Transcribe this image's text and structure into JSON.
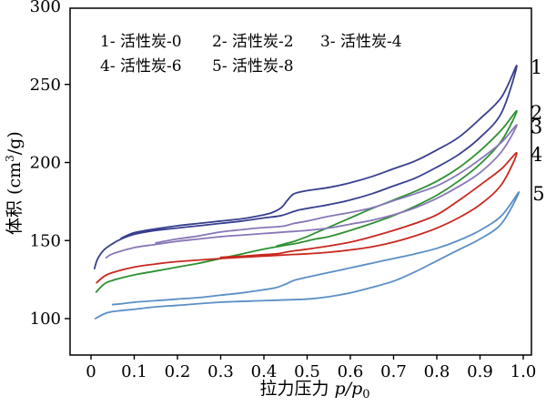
{
  "chart_data": {
    "type": "line",
    "title": "",
    "xlabel": "拉力压力 p/p₀",
    "ylabel": "体积 (cm³/g)",
    "xlabel_parts": {
      "cn": "拉力压力",
      "math": "p/p",
      "sub": "0"
    },
    "ylabel_parts": {
      "prefix": "体积 (cm",
      "sup": "3",
      "suffix": "/g)"
    },
    "xlim": [
      -0.05,
      1.02
    ],
    "ylim": [
      77,
      300
    ],
    "grid": false,
    "xticks": [
      {
        "v": 0.0,
        "label": "0"
      },
      {
        "v": 0.1,
        "label": "0.1"
      },
      {
        "v": 0.2,
        "label": "0.2"
      },
      {
        "v": 0.3,
        "label": "0.3"
      },
      {
        "v": 0.4,
        "label": "0.4"
      },
      {
        "v": 0.5,
        "label": "0.5"
      },
      {
        "v": 0.6,
        "label": "0.6"
      },
      {
        "v": 0.7,
        "label": "0.7"
      },
      {
        "v": 0.8,
        "label": "0.8"
      },
      {
        "v": 0.9,
        "label": "0.9"
      },
      {
        "v": 1.0,
        "label": "1.0"
      }
    ],
    "yticks": [
      {
        "v": 300,
        "label": "300"
      },
      {
        "v": 250,
        "label": "250"
      },
      {
        "v": 200,
        "label": "200"
      },
      {
        "v": 150,
        "label": "150"
      },
      {
        "v": 100,
        "label": "100"
      }
    ],
    "legend": {
      "position": "inside-top-left",
      "rows": [
        [
          "1- 活性炭-0",
          "2- 活性炭-2",
          "3- 活性炭-4"
        ],
        [
          "4- 活性炭-6",
          "5- 活性炭-8"
        ]
      ]
    },
    "series": [
      {
        "id": "1",
        "name": "活性炭-0",
        "end_label": "1",
        "color": "#383f8e",
        "adsorption": [
          [
            0.008,
            132
          ],
          [
            0.015,
            138
          ],
          [
            0.03,
            144
          ],
          [
            0.05,
            148
          ],
          [
            0.07,
            151
          ],
          [
            0.1,
            154
          ],
          [
            0.15,
            156.5
          ],
          [
            0.2,
            158
          ],
          [
            0.25,
            159.5
          ],
          [
            0.3,
            161
          ],
          [
            0.35,
            162.5
          ],
          [
            0.4,
            164.5
          ],
          [
            0.44,
            166
          ],
          [
            0.48,
            169.5
          ],
          [
            0.52,
            171.5
          ],
          [
            0.55,
            173
          ],
          [
            0.6,
            176
          ],
          [
            0.65,
            180
          ],
          [
            0.7,
            185
          ],
          [
            0.75,
            190
          ],
          [
            0.8,
            197
          ],
          [
            0.85,
            205
          ],
          [
            0.9,
            216
          ],
          [
            0.95,
            232
          ],
          [
            0.985,
            262
          ]
        ],
        "desorption": [
          [
            0.985,
            262
          ],
          [
            0.95,
            242
          ],
          [
            0.9,
            228
          ],
          [
            0.85,
            216
          ],
          [
            0.8,
            208
          ],
          [
            0.75,
            201
          ],
          [
            0.7,
            196
          ],
          [
            0.65,
            191
          ],
          [
            0.6,
            187
          ],
          [
            0.55,
            184
          ],
          [
            0.5,
            182
          ],
          [
            0.47,
            180
          ],
          [
            0.455,
            176
          ],
          [
            0.44,
            171
          ],
          [
            0.42,
            168
          ],
          [
            0.4,
            166.5
          ],
          [
            0.35,
            164
          ],
          [
            0.3,
            162.5
          ],
          [
            0.25,
            161
          ],
          [
            0.2,
            159.5
          ],
          [
            0.15,
            157.5
          ],
          [
            0.1,
            155
          ],
          [
            0.07,
            151.5
          ]
        ]
      },
      {
        "id": "2",
        "name": "活性炭-2",
        "end_label": "2",
        "color": "#2e9132",
        "adsorption": [
          [
            0.012,
            117
          ],
          [
            0.03,
            122
          ],
          [
            0.05,
            124.5
          ],
          [
            0.1,
            128
          ],
          [
            0.15,
            130.5
          ],
          [
            0.2,
            133
          ],
          [
            0.25,
            135.5
          ],
          [
            0.3,
            138.5
          ],
          [
            0.35,
            141.5
          ],
          [
            0.4,
            144.5
          ],
          [
            0.44,
            146.5
          ],
          [
            0.48,
            148.5
          ],
          [
            0.52,
            151
          ],
          [
            0.55,
            152.5
          ],
          [
            0.6,
            156.5
          ],
          [
            0.65,
            161
          ],
          [
            0.7,
            166
          ],
          [
            0.75,
            172
          ],
          [
            0.8,
            179
          ],
          [
            0.85,
            188
          ],
          [
            0.9,
            199
          ],
          [
            0.95,
            214
          ],
          [
            0.985,
            233
          ]
        ],
        "desorption": [
          [
            0.985,
            233
          ],
          [
            0.95,
            221
          ],
          [
            0.9,
            207.5
          ],
          [
            0.85,
            196.5
          ],
          [
            0.8,
            188
          ],
          [
            0.75,
            181.5
          ],
          [
            0.7,
            176
          ],
          [
            0.65,
            170.5
          ],
          [
            0.6,
            164.5
          ],
          [
            0.55,
            158.5
          ],
          [
            0.52,
            155
          ],
          [
            0.5,
            152.5
          ],
          [
            0.47,
            149.5
          ],
          [
            0.45,
            148
          ],
          [
            0.43,
            146.5
          ]
        ]
      },
      {
        "id": "3",
        "name": "活性炭-4",
        "end_label": "3",
        "color": "#8877b8",
        "adsorption": [
          [
            0.035,
            139
          ],
          [
            0.05,
            141.5
          ],
          [
            0.1,
            145.5
          ],
          [
            0.15,
            147.5
          ],
          [
            0.2,
            149.5
          ],
          [
            0.25,
            151
          ],
          [
            0.3,
            152.5
          ],
          [
            0.35,
            153.5
          ],
          [
            0.4,
            154.5
          ],
          [
            0.45,
            155.5
          ],
          [
            0.5,
            156.5
          ],
          [
            0.55,
            158
          ],
          [
            0.6,
            160.5
          ],
          [
            0.65,
            163
          ],
          [
            0.7,
            166.5
          ],
          [
            0.75,
            171
          ],
          [
            0.8,
            177
          ],
          [
            0.85,
            184.5
          ],
          [
            0.9,
            193.5
          ],
          [
            0.95,
            207
          ],
          [
            0.985,
            224
          ]
        ],
        "desorption": [
          [
            0.985,
            224
          ],
          [
            0.95,
            213
          ],
          [
            0.9,
            202
          ],
          [
            0.85,
            192.5
          ],
          [
            0.8,
            185
          ],
          [
            0.75,
            180
          ],
          [
            0.7,
            175.5
          ],
          [
            0.65,
            171
          ],
          [
            0.6,
            168
          ],
          [
            0.55,
            165.5
          ],
          [
            0.5,
            162.5
          ],
          [
            0.47,
            161
          ],
          [
            0.45,
            159.5
          ],
          [
            0.43,
            158.8
          ],
          [
            0.4,
            158.3
          ],
          [
            0.35,
            157
          ],
          [
            0.3,
            155.5
          ],
          [
            0.25,
            153
          ],
          [
            0.2,
            151
          ],
          [
            0.15,
            148.5
          ]
        ]
      },
      {
        "id": "4",
        "name": "活性炭-6",
        "end_label": "4",
        "color": "#c8281f",
        "adsorption": [
          [
            0.013,
            123
          ],
          [
            0.03,
            127
          ],
          [
            0.05,
            129.5
          ],
          [
            0.1,
            133
          ],
          [
            0.15,
            135
          ],
          [
            0.2,
            136.5
          ],
          [
            0.3,
            138.5
          ],
          [
            0.4,
            140
          ],
          [
            0.45,
            140.8
          ],
          [
            0.5,
            141.5
          ],
          [
            0.55,
            142.5
          ],
          [
            0.6,
            144
          ],
          [
            0.65,
            146
          ],
          [
            0.7,
            149
          ],
          [
            0.75,
            153
          ],
          [
            0.8,
            158
          ],
          [
            0.85,
            164.5
          ],
          [
            0.9,
            173
          ],
          [
            0.95,
            186
          ],
          [
            0.985,
            206
          ]
        ],
        "desorption": [
          [
            0.985,
            206
          ],
          [
            0.95,
            196
          ],
          [
            0.9,
            185.5
          ],
          [
            0.85,
            175.5
          ],
          [
            0.8,
            166.5
          ],
          [
            0.75,
            161
          ],
          [
            0.7,
            156.5
          ],
          [
            0.65,
            152.5
          ],
          [
            0.6,
            149
          ],
          [
            0.55,
            146.5
          ],
          [
            0.5,
            144.5
          ],
          [
            0.46,
            143
          ],
          [
            0.43,
            141.5
          ],
          [
            0.4,
            141
          ],
          [
            0.35,
            140
          ],
          [
            0.3,
            139.3
          ]
        ]
      },
      {
        "id": "5",
        "name": "活性炭-8",
        "end_label": "5",
        "color": "#5b8ec5",
        "adsorption": [
          [
            0.01,
            100
          ],
          [
            0.03,
            103
          ],
          [
            0.05,
            104.5
          ],
          [
            0.1,
            106
          ],
          [
            0.15,
            107.5
          ],
          [
            0.2,
            108.5
          ],
          [
            0.3,
            110.5
          ],
          [
            0.4,
            111.5
          ],
          [
            0.45,
            112
          ],
          [
            0.5,
            112.5
          ],
          [
            0.55,
            114
          ],
          [
            0.6,
            116.5
          ],
          [
            0.65,
            120
          ],
          [
            0.7,
            124
          ],
          [
            0.75,
            130
          ],
          [
            0.8,
            137
          ],
          [
            0.85,
            144
          ],
          [
            0.9,
            151
          ],
          [
            0.95,
            161
          ],
          [
            0.99,
            181
          ]
        ],
        "desorption": [
          [
            0.99,
            181
          ],
          [
            0.95,
            166
          ],
          [
            0.9,
            156.5
          ],
          [
            0.85,
            150
          ],
          [
            0.8,
            145
          ],
          [
            0.75,
            141.5
          ],
          [
            0.7,
            138.5
          ],
          [
            0.65,
            135.5
          ],
          [
            0.6,
            132.5
          ],
          [
            0.55,
            129.5
          ],
          [
            0.5,
            126.5
          ],
          [
            0.47,
            124.5
          ],
          [
            0.45,
            122
          ],
          [
            0.43,
            120
          ],
          [
            0.4,
            118.5
          ],
          [
            0.35,
            116.5
          ],
          [
            0.3,
            115
          ],
          [
            0.25,
            113.5
          ],
          [
            0.2,
            112.5
          ],
          [
            0.15,
            111.5
          ],
          [
            0.1,
            110.5
          ],
          [
            0.07,
            109.5
          ],
          [
            0.05,
            109
          ]
        ]
      }
    ],
    "frame_color": "#000000",
    "background": "#ffffff"
  }
}
